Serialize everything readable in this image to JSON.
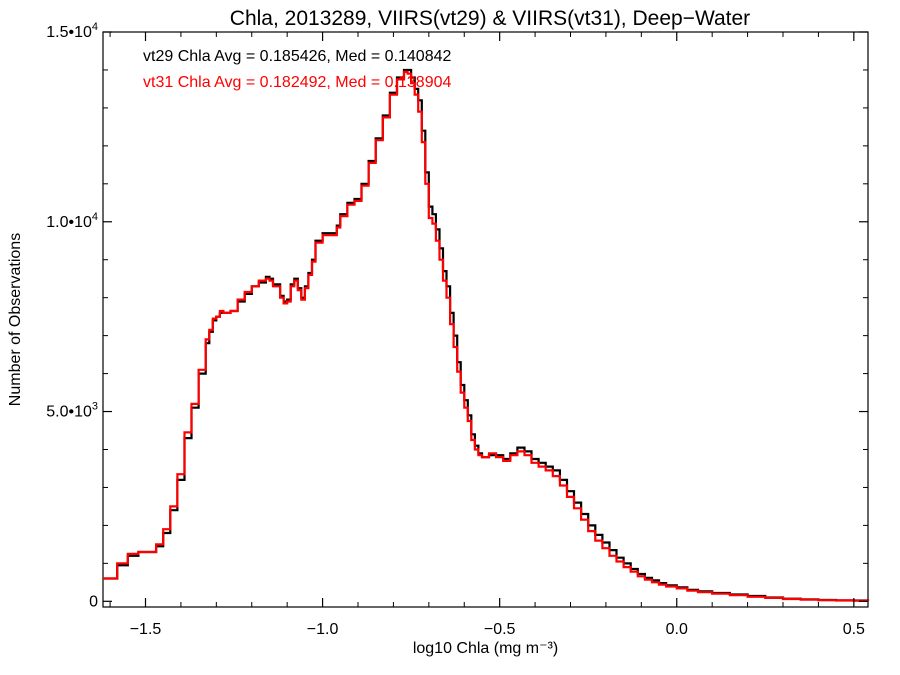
{
  "chart_data": {
    "type": "line",
    "title": "Chla, 2013289, VIIRS(vt29) & VIIRS(vt31), Deep−Water",
    "xlabel": "log10 Chla (mg m⁻³)",
    "ylabel": "Number of Observations",
    "xlim": [
      -1.62,
      0.54
    ],
    "ylim": [
      -150,
      15000
    ],
    "grid": false,
    "x_ticks": [
      -1.5,
      -1.0,
      -0.5,
      0.0,
      0.5
    ],
    "x_tick_labels": [
      "−1.5",
      "−1.0",
      "−0.5",
      "0.0",
      "0.5"
    ],
    "y_ticks": [
      0,
      5000,
      10000,
      15000
    ],
    "y_tick_labels": [
      {
        "mantissa": "0",
        "exp": ""
      },
      {
        "mantissa": "5.0•10",
        "exp": "3"
      },
      {
        "mantissa": "1.0•10",
        "exp": "4"
      },
      {
        "mantissa": "1.5•10",
        "exp": "4"
      }
    ],
    "annotations": [
      {
        "text": "vt29 Chla Avg = 0.185426, Med = 0.140842",
        "color": "#000000"
      },
      {
        "text": "vt31 Chla Avg = 0.182492, Med = 0.138904",
        "color": "#ff0000"
      }
    ],
    "series": [
      {
        "name": "vt29",
        "color": "#000000",
        "x": [
          -1.62,
          -1.58,
          -1.55,
          -1.52,
          -1.5,
          -1.47,
          -1.45,
          -1.43,
          -1.41,
          -1.39,
          -1.37,
          -1.35,
          -1.33,
          -1.32,
          -1.31,
          -1.3,
          -1.29,
          -1.28,
          -1.26,
          -1.24,
          -1.22,
          -1.2,
          -1.18,
          -1.16,
          -1.15,
          -1.14,
          -1.12,
          -1.11,
          -1.1,
          -1.09,
          -1.08,
          -1.07,
          -1.06,
          -1.05,
          -1.04,
          -1.03,
          -1.02,
          -1.0,
          -0.98,
          -0.96,
          -0.95,
          -0.93,
          -0.91,
          -0.89,
          -0.87,
          -0.85,
          -0.83,
          -0.81,
          -0.79,
          -0.77,
          -0.76,
          -0.75,
          -0.74,
          -0.73,
          -0.72,
          -0.71,
          -0.7,
          -0.69,
          -0.68,
          -0.67,
          -0.66,
          -0.65,
          -0.64,
          -0.63,
          -0.62,
          -0.61,
          -0.6,
          -0.59,
          -0.58,
          -0.57,
          -0.56,
          -0.55,
          -0.53,
          -0.51,
          -0.49,
          -0.47,
          -0.45,
          -0.43,
          -0.41,
          -0.39,
          -0.37,
          -0.35,
          -0.33,
          -0.31,
          -0.29,
          -0.27,
          -0.25,
          -0.23,
          -0.21,
          -0.19,
          -0.17,
          -0.15,
          -0.13,
          -0.11,
          -0.09,
          -0.07,
          -0.05,
          -0.03,
          0.0,
          0.03,
          0.06,
          0.1,
          0.15,
          0.2,
          0.25,
          0.3,
          0.35,
          0.4,
          0.45,
          0.5,
          0.54
        ],
        "y": [
          600,
          950,
          1200,
          1300,
          1300,
          1450,
          1800,
          2400,
          3200,
          4300,
          5100,
          6000,
          6800,
          7100,
          7400,
          7500,
          7600,
          7600,
          7650,
          7900,
          8100,
          8300,
          8400,
          8550,
          8500,
          8350,
          8050,
          7900,
          7950,
          8350,
          8500,
          8250,
          8000,
          8300,
          8650,
          9000,
          9500,
          9700,
          9700,
          9900,
          10200,
          10500,
          10600,
          11000,
          11600,
          12200,
          12800,
          13400,
          13800,
          14000,
          14000,
          13800,
          13500,
          13200,
          12400,
          11300,
          10400,
          10200,
          9800,
          9300,
          8700,
          8300,
          7600,
          7000,
          6300,
          5700,
          5300,
          4900,
          4400,
          4100,
          3900,
          3800,
          3850,
          3850,
          3750,
          3900,
          4050,
          3950,
          3750,
          3650,
          3550,
          3450,
          3200,
          2900,
          2600,
          2300,
          2000,
          1750,
          1550,
          1350,
          1150,
          1000,
          850,
          720,
          620,
          550,
          480,
          420,
          370,
          300,
          260,
          220,
          180,
          140,
          100,
          70,
          50,
          35,
          25,
          20,
          15
        ]
      },
      {
        "name": "vt31",
        "color": "#ff0000",
        "x": [
          -1.62,
          -1.58,
          -1.55,
          -1.52,
          -1.5,
          -1.47,
          -1.45,
          -1.43,
          -1.41,
          -1.39,
          -1.37,
          -1.35,
          -1.33,
          -1.32,
          -1.31,
          -1.3,
          -1.29,
          -1.28,
          -1.26,
          -1.24,
          -1.22,
          -1.2,
          -1.18,
          -1.16,
          -1.15,
          -1.14,
          -1.12,
          -1.11,
          -1.1,
          -1.09,
          -1.08,
          -1.07,
          -1.06,
          -1.05,
          -1.04,
          -1.03,
          -1.02,
          -1.0,
          -0.98,
          -0.96,
          -0.95,
          -0.93,
          -0.91,
          -0.89,
          -0.87,
          -0.85,
          -0.83,
          -0.81,
          -0.79,
          -0.77,
          -0.76,
          -0.75,
          -0.74,
          -0.73,
          -0.72,
          -0.71,
          -0.7,
          -0.69,
          -0.68,
          -0.67,
          -0.66,
          -0.65,
          -0.64,
          -0.63,
          -0.62,
          -0.61,
          -0.6,
          -0.59,
          -0.58,
          -0.57,
          -0.56,
          -0.55,
          -0.53,
          -0.51,
          -0.49,
          -0.47,
          -0.45,
          -0.43,
          -0.41,
          -0.39,
          -0.37,
          -0.35,
          -0.33,
          -0.31,
          -0.29,
          -0.27,
          -0.25,
          -0.23,
          -0.21,
          -0.19,
          -0.17,
          -0.15,
          -0.13,
          -0.11,
          -0.09,
          -0.07,
          -0.05,
          -0.03,
          0.0,
          0.03,
          0.06,
          0.1,
          0.15,
          0.2,
          0.25,
          0.3,
          0.35,
          0.4,
          0.45,
          0.5,
          0.54
        ],
        "y": [
          600,
          1000,
          1250,
          1300,
          1300,
          1500,
          1900,
          2500,
          3350,
          4450,
          5200,
          6100,
          6900,
          7150,
          7450,
          7500,
          7650,
          7600,
          7650,
          7950,
          8150,
          8300,
          8450,
          8500,
          8450,
          8300,
          8000,
          7850,
          7900,
          8300,
          8450,
          8200,
          7950,
          8250,
          8600,
          8950,
          9450,
          9650,
          9650,
          9850,
          10150,
          10450,
          10550,
          10950,
          11550,
          12150,
          12750,
          13350,
          13750,
          13950,
          13900,
          13650,
          13350,
          12900,
          12100,
          11000,
          10100,
          9950,
          9500,
          9000,
          8450,
          8000,
          7300,
          6700,
          6050,
          5500,
          5100,
          4750,
          4250,
          4000,
          3850,
          3800,
          3900,
          3800,
          3700,
          3850,
          3950,
          3850,
          3650,
          3550,
          3450,
          3300,
          3050,
          2750,
          2450,
          2150,
          1850,
          1600,
          1400,
          1200,
          1050,
          900,
          780,
          660,
          570,
          500,
          440,
          390,
          340,
          280,
          240,
          200,
          160,
          120,
          90,
          60,
          45,
          30,
          20,
          15,
          10
        ]
      }
    ]
  }
}
